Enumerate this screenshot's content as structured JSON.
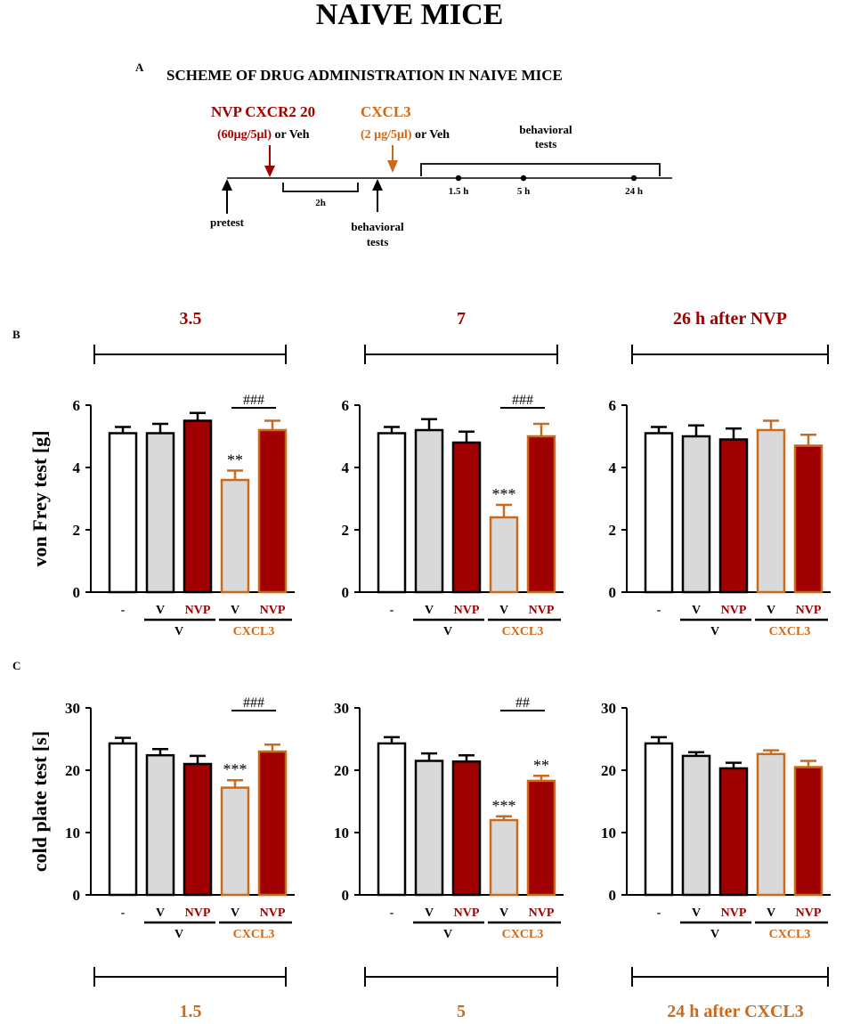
{
  "title": "NAIVE MICE",
  "colors": {
    "dark_red": "#a00000",
    "orange": "#cc6a1c",
    "grey_fill": "#d9d9d9",
    "black": "#000000",
    "white": "#ffffff"
  },
  "panel_a": {
    "letter": "A",
    "heading": "SCHEME OF DRUG ADMINISTRATION IN NAIVE MICE",
    "nvp_label": "NVP CXCR2 20",
    "nvp_dose": "(60μg/5μl)",
    "nvp_or_veh": " or Veh",
    "cxcl3_label": "CXCL3",
    "cxcl3_dose": "(2 μg/5μl)",
    "cxcl3_or_veh": " or Veh",
    "behavioral_tests_line1": "behavioral",
    "behavioral_tests_line2": "tests",
    "interval": "2h",
    "pretest": "pretest",
    "times": [
      "1.5 h",
      "5 h",
      "24 h"
    ]
  },
  "panel_b": {
    "letter": "B",
    "ylabel": "von Frey test [g]"
  },
  "panel_c": {
    "letter": "C",
    "ylabel": "cold plate test [s]"
  },
  "x_labels": {
    "dash": "-",
    "v": "V",
    "nvp": "NVP",
    "group_v": "V",
    "group_cxcl3": "CXCL3"
  },
  "timepoints_top": [
    "3.5",
    "7",
    "26 h after NVP"
  ],
  "timepoints_bottom": [
    "1.5",
    "5",
    "24 h after CXCL3"
  ],
  "chart_data": [
    {
      "type": "bar",
      "panel": "B",
      "timepoint": "3.5",
      "ylabel": "von Frey test [g]",
      "ylim": [
        0,
        6
      ],
      "yticks": [
        0,
        2,
        4,
        6
      ],
      "categories": [
        "-",
        "V / V",
        "NVP / V",
        "V / CXCL3",
        "NVP / CXCL3"
      ],
      "values": [
        5.1,
        5.1,
        5.5,
        3.6,
        5.2
      ],
      "errors": [
        0.2,
        0.3,
        0.25,
        0.3,
        0.3
      ],
      "annotations": [
        {
          "bar": 3,
          "text": "**"
        }
      ],
      "brackets": [
        {
          "from": 3,
          "to": 4,
          "text": "###"
        }
      ]
    },
    {
      "type": "bar",
      "panel": "B",
      "timepoint": "7",
      "ylabel": "von Frey test [g]",
      "ylim": [
        0,
        6
      ],
      "yticks": [
        0,
        2,
        4,
        6
      ],
      "categories": [
        "-",
        "V / V",
        "NVP / V",
        "V / CXCL3",
        "NVP / CXCL3"
      ],
      "values": [
        5.1,
        5.2,
        4.8,
        2.4,
        5.0
      ],
      "errors": [
        0.2,
        0.35,
        0.35,
        0.4,
        0.4
      ],
      "annotations": [
        {
          "bar": 3,
          "text": "***"
        }
      ],
      "brackets": [
        {
          "from": 3,
          "to": 4,
          "text": "###"
        }
      ]
    },
    {
      "type": "bar",
      "panel": "B",
      "timepoint": "26 h after NVP",
      "ylabel": "von Frey test [g]",
      "ylim": [
        0,
        6
      ],
      "yticks": [
        0,
        2,
        4,
        6
      ],
      "categories": [
        "-",
        "V / V",
        "NVP / V",
        "V / CXCL3",
        "NVP / CXCL3"
      ],
      "values": [
        5.1,
        5.0,
        4.9,
        5.2,
        4.7
      ],
      "errors": [
        0.2,
        0.35,
        0.35,
        0.3,
        0.35
      ],
      "annotations": [],
      "brackets": []
    },
    {
      "type": "bar",
      "panel": "C",
      "timepoint": "1.5",
      "ylabel": "cold plate test [s]",
      "ylim": [
        0,
        30
      ],
      "yticks": [
        0,
        10,
        20,
        30
      ],
      "categories": [
        "-",
        "V / V",
        "NVP / V",
        "V / CXCL3",
        "NVP / CXCL3"
      ],
      "values": [
        24.3,
        22.4,
        21.0,
        17.2,
        23.0
      ],
      "errors": [
        0.9,
        1.0,
        1.3,
        1.2,
        1.1
      ],
      "annotations": [
        {
          "bar": 3,
          "text": "***"
        }
      ],
      "brackets": [
        {
          "from": 3,
          "to": 4,
          "text": "###"
        }
      ]
    },
    {
      "type": "bar",
      "panel": "C",
      "timepoint": "5",
      "ylabel": "cold plate test [s]",
      "ylim": [
        0,
        30
      ],
      "yticks": [
        0,
        10,
        20,
        30
      ],
      "categories": [
        "-",
        "V / V",
        "NVP / V",
        "V / CXCL3",
        "NVP / CXCL3"
      ],
      "values": [
        24.3,
        21.5,
        21.4,
        12.0,
        18.3
      ],
      "errors": [
        1.0,
        1.2,
        1.0,
        0.6,
        0.8
      ],
      "annotations": [
        {
          "bar": 3,
          "text": "***"
        },
        {
          "bar": 4,
          "text": "**"
        }
      ],
      "brackets": [
        {
          "from": 3,
          "to": 4,
          "text": "##"
        }
      ]
    },
    {
      "type": "bar",
      "panel": "C",
      "timepoint": "24 h after CXCL3",
      "ylabel": "cold plate test [s]",
      "ylim": [
        0,
        30
      ],
      "yticks": [
        0,
        10,
        20,
        30
      ],
      "categories": [
        "-",
        "V / V",
        "NVP / V",
        "V / CXCL3",
        "NVP / CXCL3"
      ],
      "values": [
        24.3,
        22.3,
        20.3,
        22.6,
        20.5
      ],
      "errors": [
        1.0,
        0.6,
        0.9,
        0.6,
        1.0
      ],
      "annotations": [],
      "brackets": []
    }
  ]
}
